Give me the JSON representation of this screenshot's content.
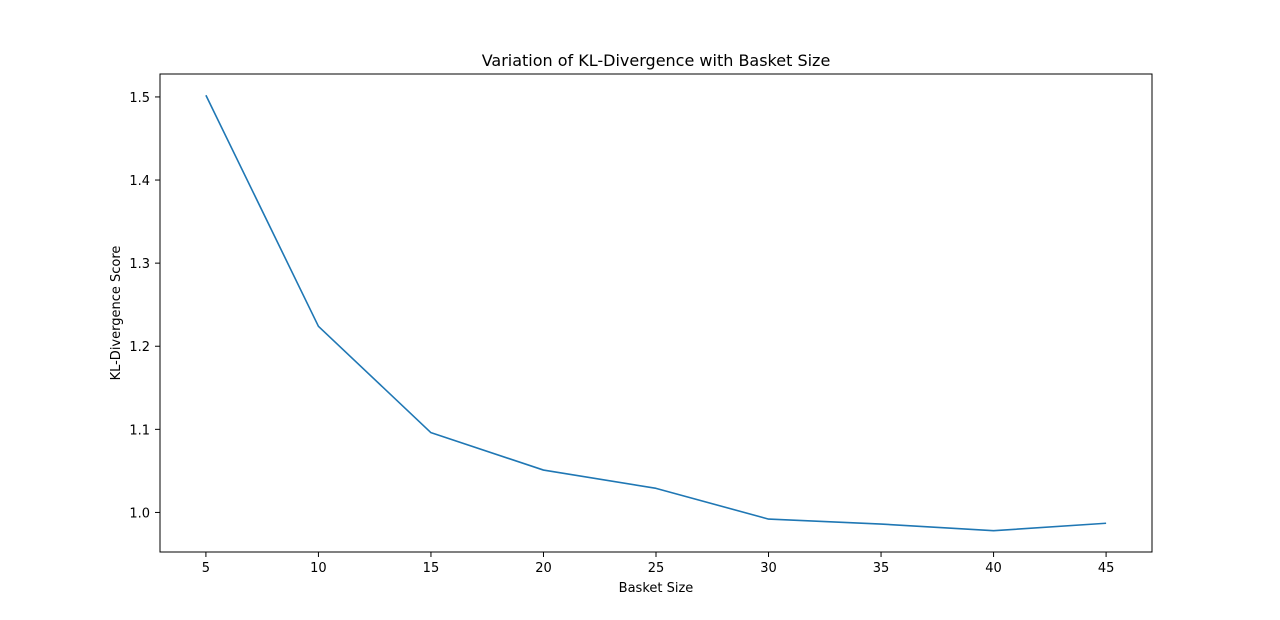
{
  "chart_data": {
    "type": "line",
    "title": "Variation of KL-Divergence with Basket Size",
    "xlabel": "Basket Size",
    "ylabel": "KL-Divergence Score",
    "x": [
      5,
      10,
      15,
      20,
      25,
      30,
      35,
      40,
      45
    ],
    "series": [
      {
        "values": [
          1.502,
          1.224,
          1.096,
          1.051,
          1.029,
          0.992,
          0.986,
          0.978,
          0.987
        ],
        "color": "#1f77b4"
      }
    ],
    "xticks": [
      5,
      10,
      15,
      20,
      25,
      30,
      35,
      40,
      45
    ],
    "xtick_labels": [
      "5",
      "10",
      "15",
      "20",
      "25",
      "30",
      "35",
      "40",
      "45"
    ],
    "yticks": [
      1.0,
      1.1,
      1.2,
      1.3,
      1.4,
      1.5
    ],
    "ytick_labels": [
      "1.0",
      "1.1",
      "1.2",
      "1.3",
      "1.4",
      "1.5"
    ],
    "xlim": [
      2.96,
      47.04
    ],
    "ylim": [
      0.9524,
      1.5276
    ],
    "grid": false,
    "legend": "none"
  }
}
